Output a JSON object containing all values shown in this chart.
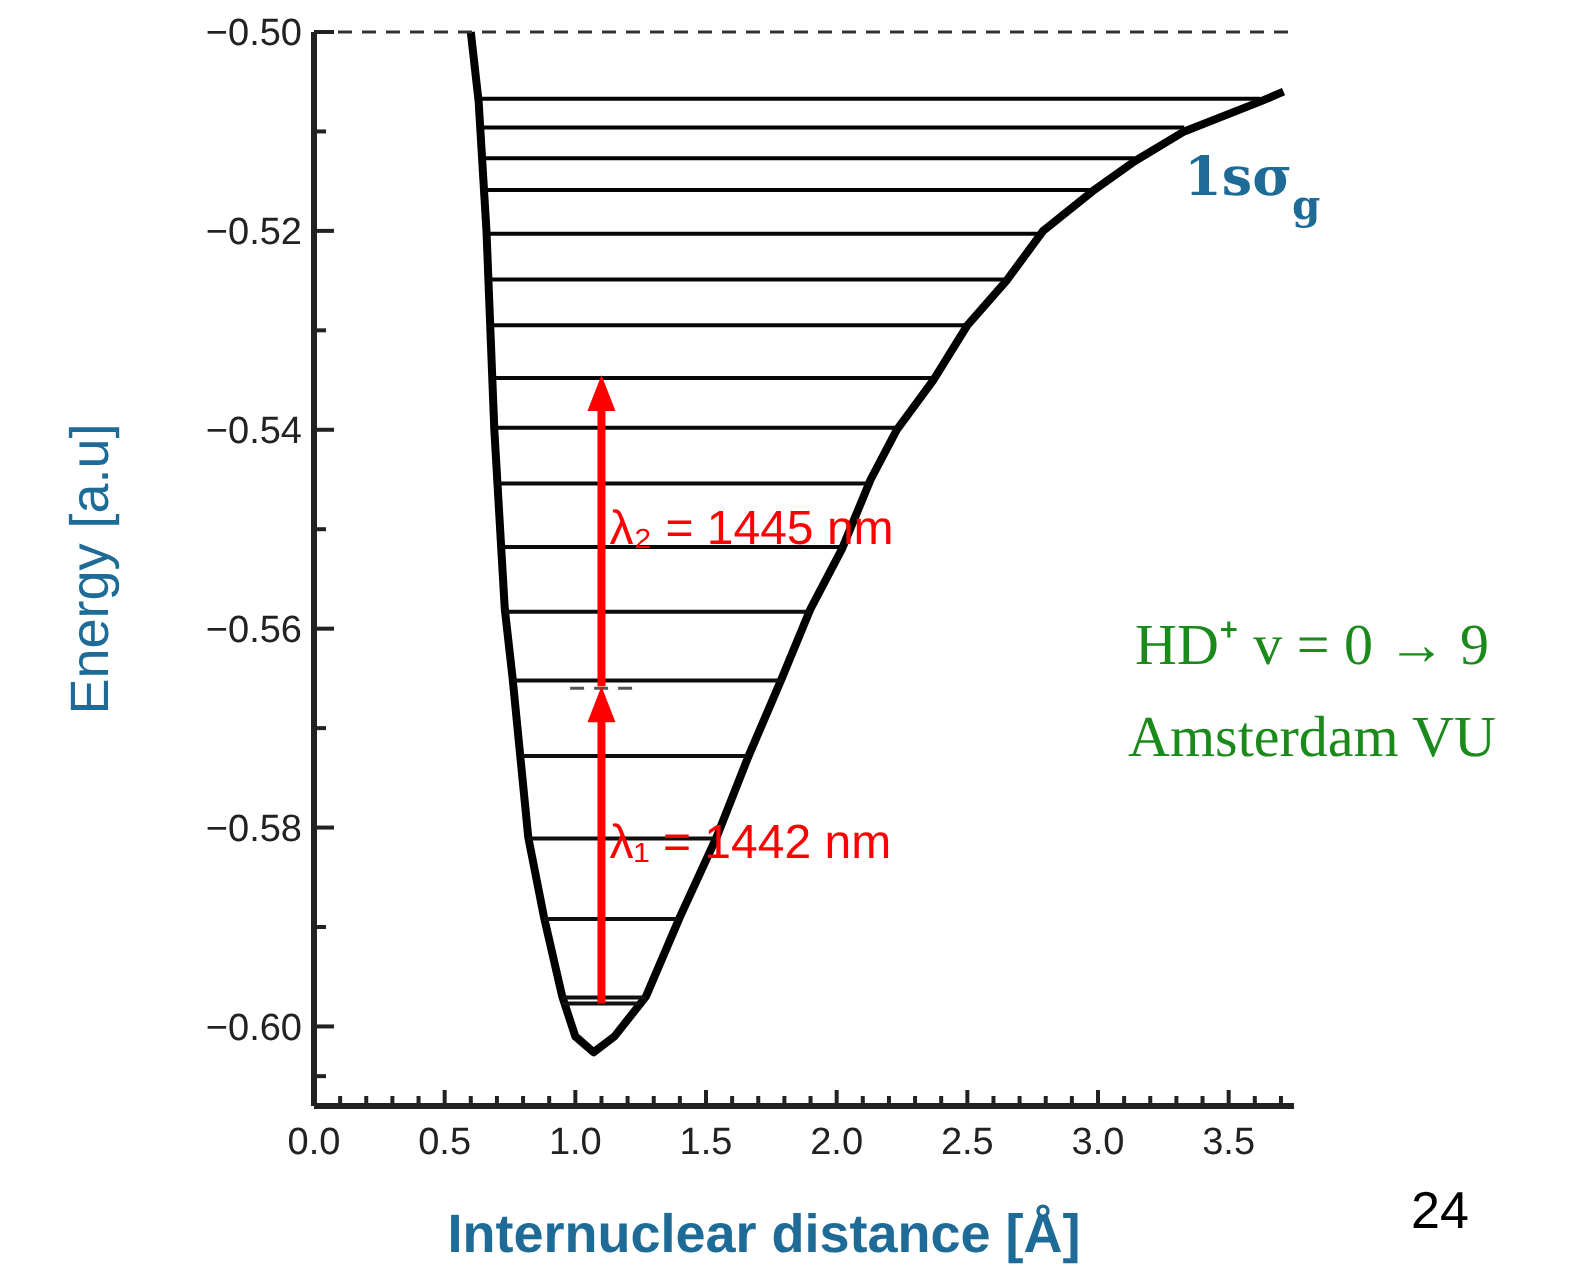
{
  "chart_data": {
    "type": "line",
    "xlabel": "Internuclear distance [Å]",
    "ylabel": "Energy [a.u]",
    "xlim": [
      0,
      3.75
    ],
    "ylim": [
      -0.608,
      -0.5
    ],
    "xticks": [
      {
        "value": 0,
        "label": "0.0"
      },
      {
        "value": 0.5,
        "label": "0.5"
      },
      {
        "value": 1,
        "label": "1.0"
      },
      {
        "value": 1.5,
        "label": "1.5"
      },
      {
        "value": 2,
        "label": "2.0"
      },
      {
        "value": 2.5,
        "label": "2.5"
      },
      {
        "value": 3,
        "label": "3.0"
      },
      {
        "value": 3.5,
        "label": "3.5"
      },
      {
        "value": 0.1,
        "label": null
      },
      {
        "value": 0.2,
        "label": null
      },
      {
        "value": 0.3,
        "label": null
      },
      {
        "value": 0.4,
        "label": null
      },
      {
        "value": 0.6,
        "label": null
      },
      {
        "value": 0.7,
        "label": null
      },
      {
        "value": 0.8,
        "label": null
      },
      {
        "value": 0.9,
        "label": null
      },
      {
        "value": 1.1,
        "label": null
      },
      {
        "value": 1.2,
        "label": null
      },
      {
        "value": 1.3,
        "label": null
      },
      {
        "value": 1.4,
        "label": null
      },
      {
        "value": 1.6,
        "label": null
      },
      {
        "value": 1.7,
        "label": null
      },
      {
        "value": 1.8,
        "label": null
      },
      {
        "value": 1.9,
        "label": null
      },
      {
        "value": 2.1,
        "label": null
      },
      {
        "value": 2.2,
        "label": null
      },
      {
        "value": 2.3,
        "label": null
      },
      {
        "value": 2.4,
        "label": null
      },
      {
        "value": 2.6,
        "label": null
      },
      {
        "value": 2.7,
        "label": null
      },
      {
        "value": 2.8,
        "label": null
      },
      {
        "value": 2.9,
        "label": null
      },
      {
        "value": 3.1,
        "label": null
      },
      {
        "value": 3.2,
        "label": null
      },
      {
        "value": 3.3,
        "label": null
      },
      {
        "value": 3.4,
        "label": null
      },
      {
        "value": 3.6,
        "label": null
      },
      {
        "value": 3.7,
        "label": null
      }
    ],
    "yticks": [
      {
        "value": -0.5,
        "label": "−0.50"
      },
      {
        "value": -0.52,
        "label": "−0.52"
      },
      {
        "value": -0.54,
        "label": "−0.54"
      },
      {
        "value": -0.56,
        "label": "−0.56"
      },
      {
        "value": -0.58,
        "label": "−0.58"
      },
      {
        "value": -0.6,
        "label": "−0.60"
      },
      {
        "value": -0.51,
        "label": null
      },
      {
        "value": -0.53,
        "label": null
      },
      {
        "value": -0.55,
        "label": null
      },
      {
        "value": -0.57,
        "label": null
      },
      {
        "value": -0.59,
        "label": null
      },
      {
        "value": -0.605,
        "label": null
      }
    ],
    "grid": false,
    "ref_lines": [
      {
        "axis": "y",
        "value": -0.5,
        "label": null,
        "color": "#333333",
        "line_style": "dashed"
      }
    ],
    "series": [
      {
        "name": "1sσ$_{g}$",
        "color": "#000000",
        "x": [
          0.6,
          0.63,
          0.66,
          0.69,
          0.73,
          0.76,
          0.82,
          0.88,
          0.95,
          1.0,
          1.07,
          1.15,
          1.27,
          1.4,
          1.54,
          1.66,
          1.79,
          1.9,
          2.02,
          2.13,
          2.23,
          2.37,
          2.5,
          2.65,
          2.79,
          2.98,
          3.14,
          3.33,
          3.62,
          3.71
        ],
        "values": [
          -0.5,
          -0.507,
          -0.52,
          -0.54,
          -0.558,
          -0.565,
          -0.581,
          -0.589,
          -0.597,
          -0.601,
          -0.6026,
          -0.601,
          -0.597,
          -0.589,
          -0.581,
          -0.573,
          -0.565,
          -0.558,
          -0.552,
          -0.545,
          -0.54,
          -0.535,
          -0.5295,
          -0.525,
          -0.52,
          -0.516,
          -0.513,
          -0.51,
          -0.507,
          -0.506
        ]
      },
      {
        "color": "#010101",
        "x": [
          0.63,
          3.62
        ],
        "values": [
          -0.5067,
          -0.5067
        ]
      },
      {
        "color": "#020202",
        "x": [
          0.64,
          3.33
        ],
        "values": [
          -0.5096,
          -0.5096
        ]
      },
      {
        "color": "#030303",
        "x": [
          0.645,
          3.14
        ],
        "values": [
          -0.5127,
          -0.5127
        ]
      },
      {
        "color": "#040404",
        "x": [
          0.65,
          2.98
        ],
        "values": [
          -0.5159,
          -0.5159
        ]
      },
      {
        "color": "#050505",
        "x": [
          0.66,
          2.79
        ],
        "values": [
          -0.5203,
          -0.5203
        ]
      },
      {
        "color": "#060606",
        "x": [
          0.665,
          2.65
        ],
        "values": [
          -0.5249,
          -0.5249
        ]
      },
      {
        "color": "#070707",
        "x": [
          0.67,
          2.5
        ],
        "values": [
          -0.5295,
          -0.5295
        ]
      },
      {
        "color": "#080808",
        "x": [
          0.68,
          2.37
        ],
        "values": [
          -0.5348,
          -0.5348
        ]
      },
      {
        "color": "#090909",
        "x": [
          0.69,
          2.23
        ],
        "values": [
          -0.5398,
          -0.5398
        ]
      },
      {
        "color": "#0a0a0a",
        "x": [
          0.7,
          2.13
        ],
        "values": [
          -0.5454,
          -0.5454
        ]
      },
      {
        "color": "#0b0b0b",
        "x": [
          0.71,
          2.02
        ],
        "values": [
          -0.5518,
          -0.5518
        ]
      },
      {
        "color": "#0c0c0c",
        "x": [
          0.73,
          1.9
        ],
        "values": [
          -0.5583,
          -0.5583
        ]
      },
      {
        "color": "#0d0d0d",
        "x": [
          0.76,
          1.79
        ],
        "values": [
          -0.5652,
          -0.5652
        ]
      },
      {
        "color": "#0e0e0e",
        "x": [
          0.79,
          1.66
        ],
        "values": [
          -0.5728,
          -0.5728
        ]
      },
      {
        "color": "#0f0f0f",
        "x": [
          0.82,
          1.54
        ],
        "values": [
          -0.5811,
          -0.5811
        ]
      },
      {
        "color": "#101010",
        "x": [
          0.88,
          1.4
        ],
        "values": [
          -0.5892,
          -0.5892
        ]
      },
      {
        "color": "#111111",
        "x": [
          0.95,
          1.27
        ],
        "values": [
          -0.5971,
          -0.5971
        ]
      },
      {
        "color": "#121212",
        "x": [
          0.95,
          1.25
        ],
        "values": [
          -0.5977,
          -0.5977
        ]
      },
      {
        "color": "#555555",
        "x": [
          0.98,
          1.25
        ],
        "values": [
          -0.566,
          -0.566
        ],
        "line_style": "dashed"
      }
    ],
    "annotations": [
      {
        "text": "λ₁ = 1442 nm",
        "x": 1.1,
        "y": -0.5658
      },
      {
        "text": "λ₂ = 1445 nm",
        "x": 1.1,
        "y": -0.5345
      },
      "HD⁺ v = 0 → 9",
      "Amsterdam VU",
      "24"
    ]
  }
}
